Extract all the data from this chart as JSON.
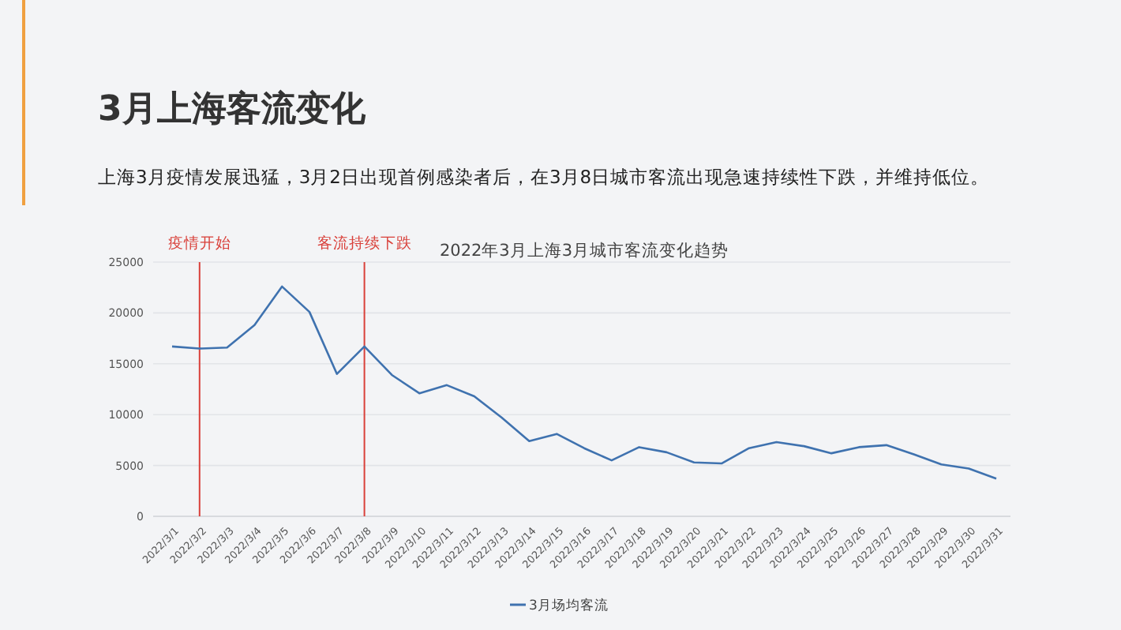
{
  "chart_data": {
    "type": "line",
    "title": "3月上海客流变化",
    "subtitle": "上海3月疫情发展迅猛，3月2日出现首例感染者后，在3月8日城市客流出现急速持续性下跌，并维持低位。",
    "categories": [
      "2022/3/1",
      "2022/3/2",
      "2022/3/3",
      "2022/3/4",
      "2022/3/5",
      "2022/3/6",
      "2022/3/7",
      "2022/3/8",
      "2022/3/9",
      "2022/3/10",
      "2022/3/11",
      "2022/3/12",
      "2022/3/13",
      "2022/3/14",
      "2022/3/15",
      "2022/3/16",
      "2022/3/17",
      "2022/3/18",
      "2022/3/19",
      "2022/3/20",
      "2022/3/21",
      "2022/3/22",
      "2022/3/23",
      "2022/3/24",
      "2022/3/25",
      "2022/3/26",
      "2022/3/27",
      "2022/3/28",
      "2022/3/29",
      "2022/3/30",
      "2022/3/31"
    ],
    "series": [
      {
        "name": "3月场均客流",
        "color": "#3f72af",
        "values": [
          16700,
          16500,
          16600,
          18800,
          22600,
          20100,
          14000,
          16700,
          13900,
          12100,
          12900,
          11800,
          9700,
          7400,
          8100,
          6700,
          5500,
          6800,
          6300,
          5300,
          5200,
          6700,
          7300,
          6900,
          6200,
          6800,
          7000,
          6100,
          5100,
          4700,
          3700
        ]
      }
    ],
    "annotations": [
      "2022年3月上海3月城市客流变化趋势"
    ],
    "ylim": [
      0,
      25000
    ],
    "yticks": [
      0,
      5000,
      10000,
      15000,
      20000,
      25000
    ],
    "grid": "y",
    "legend": "bottom",
    "marker": "none",
    "line_style": "solid",
    "ref_lines": [
      {
        "axis": "x",
        "value": "2022/3/2",
        "label": "疫情开始",
        "color": "#d9403a"
      },
      {
        "axis": "x",
        "value": "2022/3/8",
        "label": "客流持续下跌",
        "color": "#d9403a"
      }
    ]
  }
}
